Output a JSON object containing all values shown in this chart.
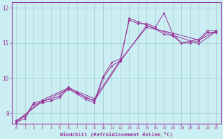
{
  "bg_color": "#cbeef3",
  "line_color": "#993399",
  "grid_color": "#9ecfcf",
  "xlabel": "Windchill (Refroidissement éolien,°C)",
  "xlim": [
    -0.5,
    23.5
  ],
  "ylim": [
    8.7,
    12.15
  ],
  "yticks": [
    9,
    10,
    11,
    12
  ],
  "xticks": [
    0,
    1,
    2,
    3,
    4,
    5,
    6,
    7,
    8,
    9,
    10,
    11,
    12,
    13,
    14,
    15,
    16,
    17,
    18,
    19,
    20,
    21,
    22,
    23
  ],
  "series1_x": [
    0,
    1,
    2,
    3,
    4,
    5,
    6,
    7,
    8,
    9,
    10,
    11,
    12,
    13,
    14,
    15,
    16,
    17,
    18,
    19,
    20,
    21,
    22,
    23
  ],
  "series1_y": [
    8.8,
    8.9,
    9.3,
    9.35,
    9.4,
    9.5,
    9.75,
    9.6,
    9.45,
    9.35,
    10.05,
    10.45,
    10.55,
    11.65,
    11.55,
    11.55,
    11.45,
    11.85,
    11.25,
    11.0,
    11.05,
    11.1,
    11.35,
    11.35
  ],
  "series2_x": [
    0,
    1,
    2,
    3,
    4,
    5,
    6,
    7,
    8,
    9,
    10,
    11,
    12,
    13,
    14,
    15,
    16,
    17,
    18,
    19,
    20,
    21,
    22,
    23
  ],
  "series2_y": [
    8.75,
    8.85,
    9.25,
    9.3,
    9.35,
    9.45,
    9.7,
    9.55,
    9.4,
    9.3,
    10.0,
    10.35,
    10.5,
    11.7,
    11.6,
    11.5,
    11.4,
    11.25,
    11.2,
    11.0,
    11.0,
    11.05,
    11.3,
    11.3
  ],
  "series3_x": [
    0,
    3,
    6,
    9,
    12,
    15,
    18,
    21,
    23
  ],
  "series3_y": [
    8.78,
    9.33,
    9.68,
    9.36,
    10.48,
    11.5,
    11.22,
    10.98,
    11.32
  ],
  "series4_x": [
    0,
    3,
    6,
    9,
    12,
    15,
    18,
    21,
    23
  ],
  "series4_y": [
    8.73,
    9.38,
    9.72,
    9.42,
    10.52,
    11.44,
    11.28,
    11.08,
    11.34
  ]
}
